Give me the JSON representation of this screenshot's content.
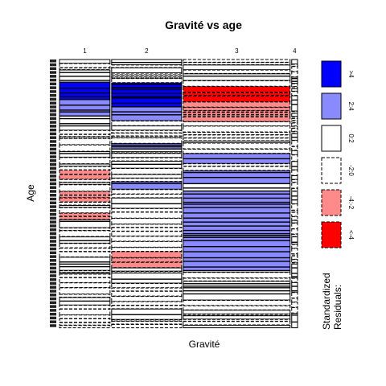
{
  "chart_data": {
    "type": "mosaic",
    "title": "Gravité vs age",
    "xlabel": "Gravité",
    "ylabel": "Age",
    "gravite_levels": [
      "1",
      "2",
      "3",
      "4"
    ],
    "gravite_proportions": [
      0.26,
      0.36,
      0.55,
      0.03
    ],
    "legend": {
      "title_line1": "Standardized",
      "title_line2": "Residuals:",
      "entries": [
        {
          "label": ">4",
          "fill": "#0000ff",
          "border": "solid"
        },
        {
          "label": "2:4",
          "fill": "#8a8aff",
          "border": "solid"
        },
        {
          "label": "0:2",
          "fill": "#ffffff",
          "border": "solid"
        },
        {
          "label": "-2:0",
          "fill": "#ffffff",
          "border": "dashed"
        },
        {
          "label": "-4:-2",
          "fill": "#ff8a8a",
          "border": "dashed"
        },
        {
          "label": "<-4",
          "fill": "#ff0000",
          "border": "dashed"
        }
      ]
    },
    "colors": {
      "strong_pos": "#0000ff",
      "pos": "#8a8aff",
      "neg": "#ff8a8a",
      "strong_neg": "#ff0000"
    }
  }
}
